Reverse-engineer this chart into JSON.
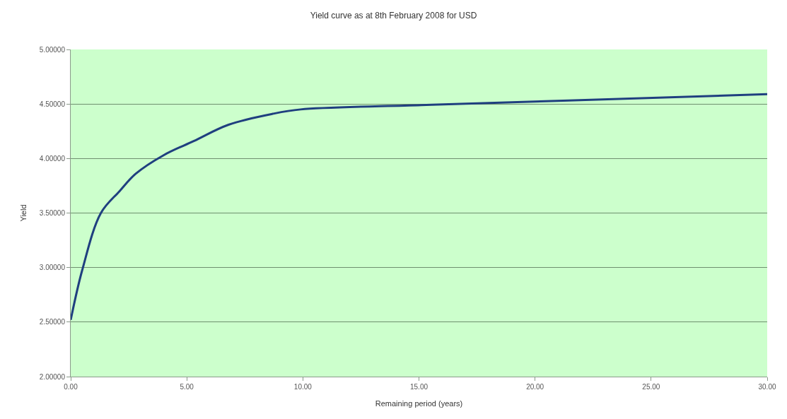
{
  "chart_data": {
    "type": "line",
    "title": "Yield curve as at 8th February 2008 for USD",
    "xlabel": "Remaining period (years)",
    "ylabel": "Yield",
    "xlim": [
      0,
      30
    ],
    "xticks": [
      {
        "value": 0,
        "label": "0.00"
      },
      {
        "value": 5,
        "label": "5.00"
      },
      {
        "value": 10,
        "label": "10.00"
      },
      {
        "value": 15,
        "label": "15.00"
      },
      {
        "value": 20,
        "label": "20.00"
      },
      {
        "value": 25,
        "label": "25.00"
      },
      {
        "value": 30,
        "label": "30.00"
      }
    ],
    "ylim": [
      2.0,
      5.0
    ],
    "yticks": [
      {
        "value": 2.0,
        "label": "2.00000"
      },
      {
        "value": 2.5,
        "label": "2.50000"
      },
      {
        "value": 3.0,
        "label": "3.00000"
      },
      {
        "value": 3.5,
        "label": "3.50000"
      },
      {
        "value": 4.0,
        "label": "4.00000"
      },
      {
        "value": 4.5,
        "label": "4.50000"
      },
      {
        "value": 5.0,
        "label": "5.00000"
      }
    ],
    "grid": "y",
    "legend": false,
    "series": [
      {
        "color": "#1f3f7f",
        "x": [
          0,
          0.5,
          1.3,
          2.1,
          2.8,
          4.0,
          5.3,
          6.8,
          8.7,
          9.9,
          15.1,
          21.2,
          30
        ],
        "values": [
          2.52,
          2.98,
          3.5,
          3.7,
          3.86,
          4.03,
          4.16,
          4.31,
          4.41,
          4.45,
          4.49,
          4.53,
          4.59
        ]
      }
    ]
  }
}
